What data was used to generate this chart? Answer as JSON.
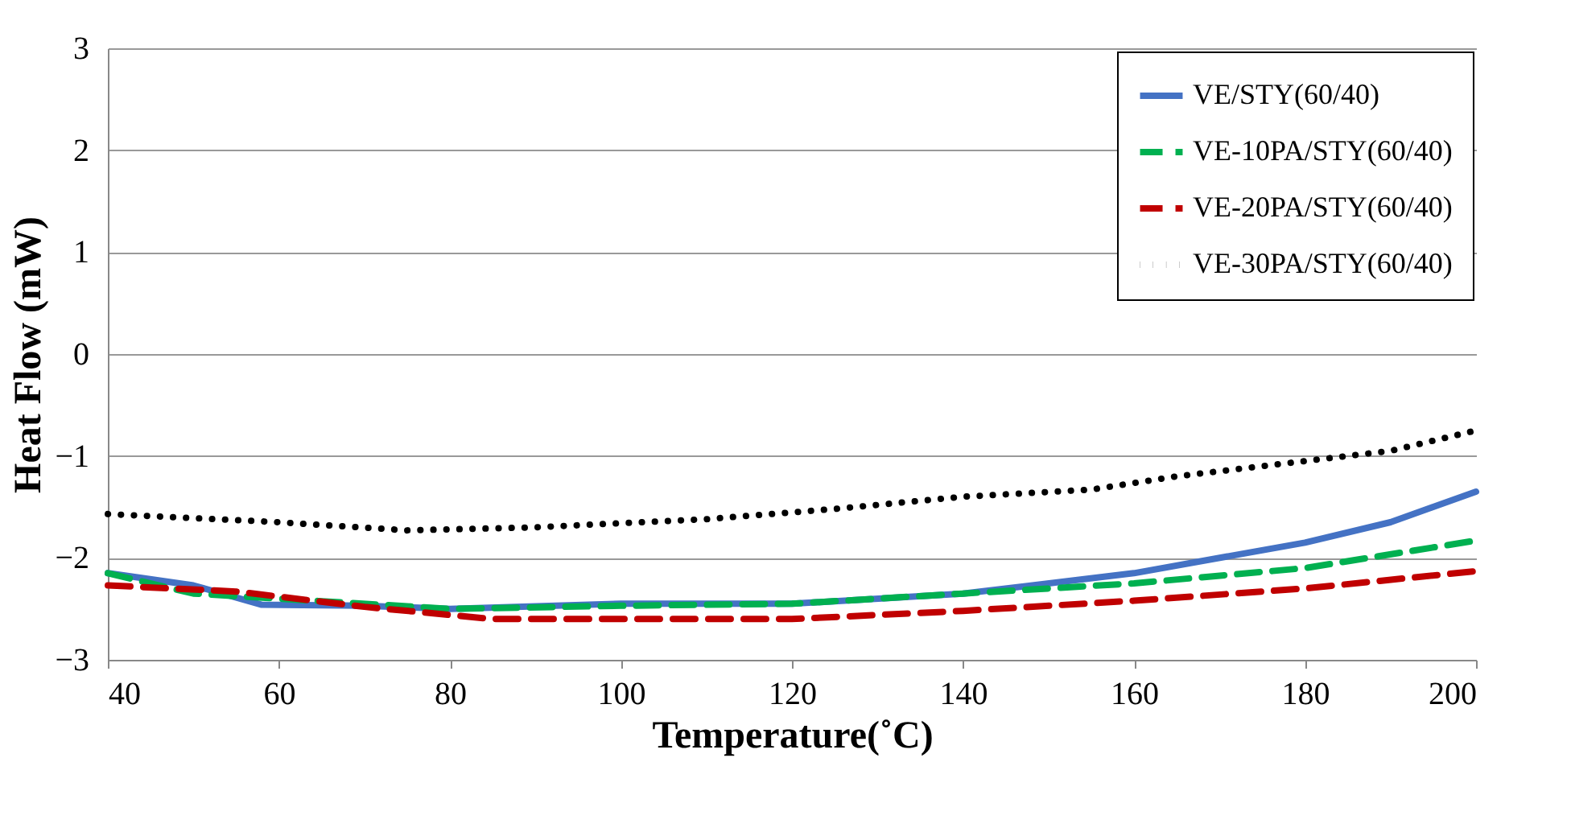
{
  "chart_data": {
    "type": "line",
    "xlabel": "Temperature(˚C)",
    "ylabel": "Heat Flow (mW)",
    "xlim": [
      40,
      200
    ],
    "ylim": [
      -3,
      3
    ],
    "xticks": [
      40,
      60,
      80,
      100,
      120,
      140,
      160,
      180,
      200
    ],
    "yticks": [
      -3,
      -2,
      -1,
      0,
      1,
      2,
      3
    ],
    "grid": "y",
    "legend": "top right",
    "marker": "none",
    "series": [
      {
        "name": "VE/STY(60/40)",
        "color": "#4472c4",
        "line_style": "solid",
        "x": [
          40,
          50,
          58,
          70,
          80,
          100,
          120,
          140,
          160,
          180,
          190,
          200
        ],
        "values": [
          -2.15,
          -2.27,
          -2.46,
          -2.47,
          -2.5,
          -2.45,
          -2.45,
          -2.35,
          -2.15,
          -1.85,
          -1.65,
          -1.35
        ]
      },
      {
        "name": "VE-10PA/STY(60/40)",
        "color": "#00b050",
        "line_style": "dashed",
        "x": [
          40,
          50,
          60,
          80,
          100,
          120,
          140,
          160,
          180,
          200
        ],
        "values": [
          -2.15,
          -2.35,
          -2.4,
          -2.5,
          -2.47,
          -2.45,
          -2.35,
          -2.25,
          -2.1,
          -1.83
        ]
      },
      {
        "name": "VE-20PA/STY(60/40)",
        "color": "#c00000",
        "line_style": "dashed",
        "x": [
          40,
          55,
          70,
          85,
          100,
          120,
          140,
          160,
          180,
          200
        ],
        "values": [
          -2.27,
          -2.33,
          -2.48,
          -2.6,
          -2.6,
          -2.6,
          -2.52,
          -2.42,
          -2.3,
          -2.13
        ]
      },
      {
        "name": "VE-30PA/STY(60/40)",
        "color": "#000000",
        "line_style": "dotted",
        "x": [
          40,
          60,
          75,
          90,
          110,
          125,
          140,
          155,
          165,
          180,
          190,
          200
        ],
        "values": [
          -1.57,
          -1.65,
          -1.73,
          -1.7,
          -1.62,
          -1.52,
          -1.4,
          -1.33,
          -1.2,
          -1.05,
          -0.95,
          -0.75
        ]
      }
    ]
  }
}
